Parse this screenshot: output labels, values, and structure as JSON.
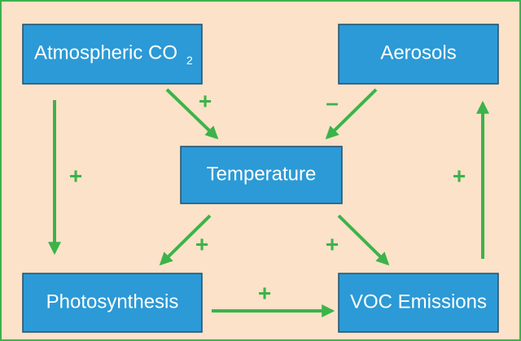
{
  "nodes": [
    {
      "label": "Atmospheric CO",
      "label_subscript": "2"
    },
    {
      "label": "Aerosols"
    },
    {
      "label": "Temperature"
    },
    {
      "label": "Photosynthesis"
    },
    {
      "label": "VOC Emissions"
    }
  ],
  "edges": [
    {
      "from": "Atmospheric CO2",
      "to": "Photosynthesis",
      "label": "+"
    },
    {
      "from": "Atmospheric CO2",
      "to": "Temperature",
      "label": "+"
    },
    {
      "from": "Aerosols",
      "to": "Temperature",
      "label": "–"
    },
    {
      "from": "Temperature",
      "to": "Photosynthesis",
      "label": "+"
    },
    {
      "from": "Temperature",
      "to": "VOC Emissions",
      "label": "+"
    },
    {
      "from": "Photosynthesis",
      "to": "VOC Emissions",
      "label": "+"
    },
    {
      "from": "VOC Emissions",
      "to": "Aerosols",
      "label": "+"
    }
  ]
}
